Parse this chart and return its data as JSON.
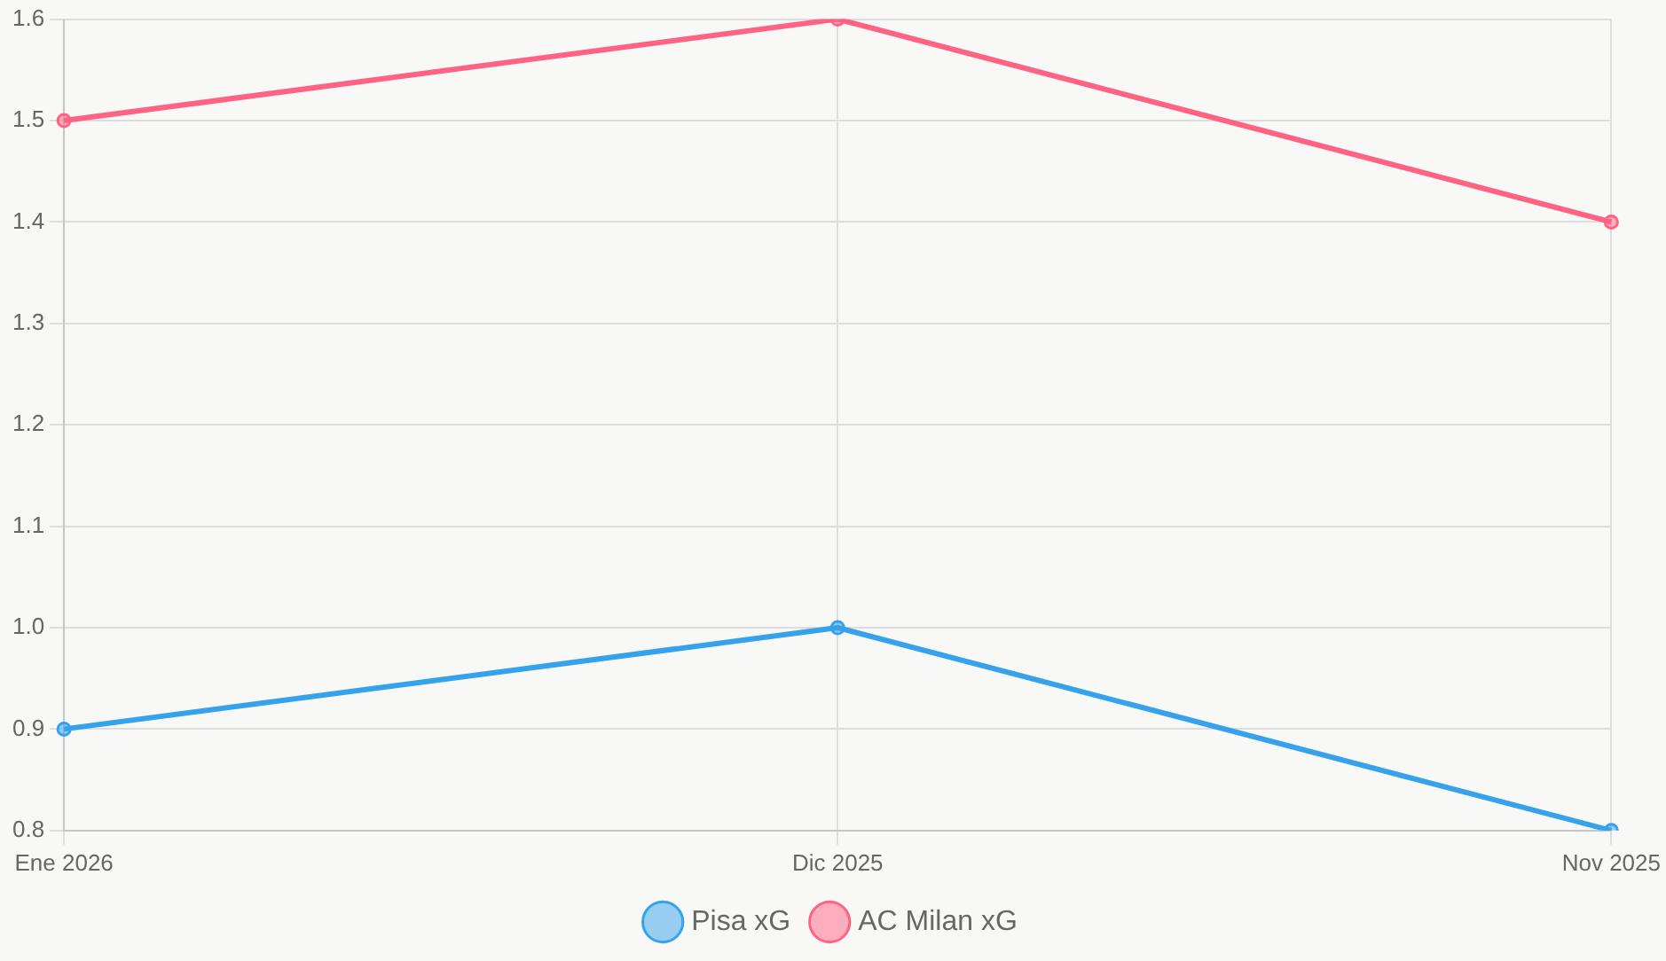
{
  "chart_data": {
    "type": "line",
    "categories": [
      "Ene 2026",
      "Dic 2025",
      "Nov 2025"
    ],
    "series": [
      {
        "name": "Pisa xG",
        "color": "#36a2eb",
        "values": [
          0.9,
          1.0,
          0.8
        ]
      },
      {
        "name": "AC Milan xG",
        "color": "#ff6384",
        "values": [
          1.5,
          1.6,
          1.4
        ]
      }
    ],
    "ylim": [
      0.8,
      1.6
    ],
    "yticks": [
      0.8,
      0.9,
      {
        "value": 1.0,
        "label": "1.0"
      },
      1.1,
      1.2,
      1.3,
      1.4,
      1.5,
      1.6
    ],
    "grid": true,
    "legend": "bottom",
    "marker": "circle",
    "line_style": "solid"
  }
}
